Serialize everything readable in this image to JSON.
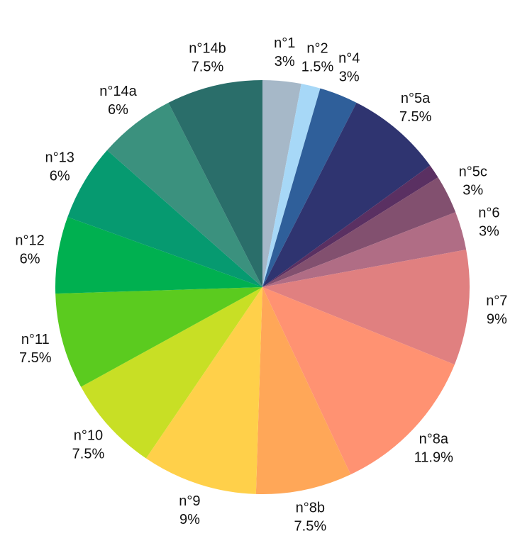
{
  "chart_data": {
    "type": "pie",
    "categories": [
      "n°1",
      "n°2",
      "n°4",
      "n°5a",
      null,
      "n°5c",
      "n°6",
      "n°7",
      "n°8a",
      "n°8b",
      "n°9",
      "n°10",
      "n°11",
      "n°12",
      "n°13",
      "n°14a",
      "n°14b"
    ],
    "values": [
      3,
      1.5,
      3,
      7.5,
      1.1,
      3,
      3,
      9,
      11.9,
      7.5,
      9,
      7.5,
      7.5,
      6,
      6,
      6,
      7.5
    ],
    "value_labels": [
      "3%",
      "1.5%",
      "3%",
      "7.5%",
      null,
      "3%",
      "3%",
      "9%",
      "11.9%",
      "7.5%",
      "9%",
      "7.5%",
      "7.5%",
      "6%",
      "6%",
      "6%",
      "7.5%"
    ],
    "colors": [
      "#a6b8c8",
      "#a7d8f7",
      "#2f5f9a",
      "#2f3470",
      "#5a3062",
      "#82506f",
      "#b06d85",
      "#e08080",
      "#ff9272",
      "#ffa758",
      "#ffd04a",
      "#c8df25",
      "#5bcb1f",
      "#00b050",
      "#069a70",
      "#3b917e",
      "#2a6e6a"
    ]
  }
}
